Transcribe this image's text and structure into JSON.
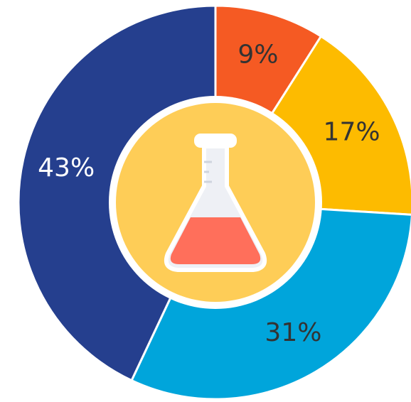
{
  "chart_data": {
    "type": "pie",
    "categories": [
      null,
      null,
      null,
      null
    ],
    "values": [
      9,
      17,
      31,
      43
    ],
    "value_labels": [
      "9%",
      "17%",
      "31%",
      "43%"
    ],
    "colors": [
      "#f55a23",
      "#fdbb00",
      "#00a5db",
      "#253f8e"
    ]
  }
}
